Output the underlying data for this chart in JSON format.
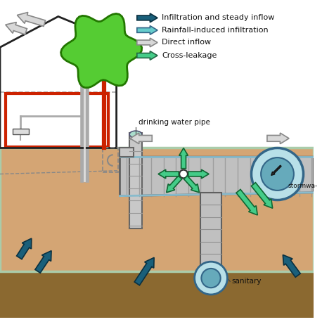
{
  "bg": "#ffffff",
  "soil_tan": "#d4a574",
  "soil_dark": "#8b6930",
  "pipe_gray": "#b8b8b8",
  "pipe_edge": "#666666",
  "red_pipe": "#cc2200",
  "tree_green": "#55cc33",
  "tree_edge": "#227700",
  "teal_dark": "#1a5f7a",
  "teal_light": "#66cccc",
  "white_arr": "#d8d8d8",
  "green_arr": "#44cc88",
  "legend": [
    {
      "label": "Infiltration and steady inflow",
      "color": "#1a5f7a"
    },
    {
      "label": "Rainfall-induced infiltration",
      "color": "#66cccc"
    },
    {
      "label": "Direct inflow",
      "color": "#d8d8d8"
    },
    {
      "label": "Cross-leakage",
      "color": "#44cc88"
    }
  ],
  "txt_dwp": "drinking water pipe",
  "txt_storm": "stormwa-",
  "txt_sanitary": "sanitary"
}
